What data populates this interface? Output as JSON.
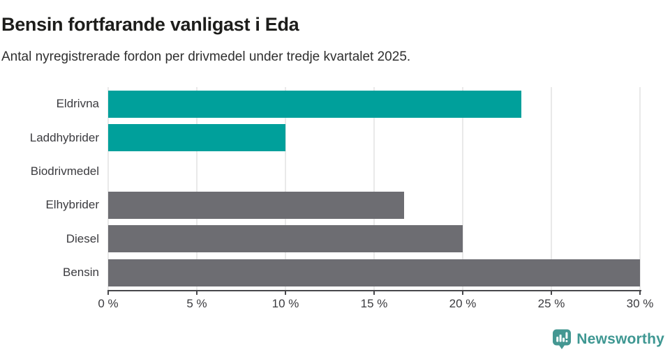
{
  "header": {
    "title": "Bensin fortfarande vanligast i Eda",
    "subtitle": "Antal nyregistrerade fordon per drivmedel under tredje kvartalet 2025."
  },
  "chart_data": {
    "type": "bar",
    "orientation": "horizontal",
    "title": "Bensin fortfarande vanligast i Eda",
    "subtitle": "Antal nyregistrerade fordon per drivmedel under tredje kvartalet 2025.",
    "categories": [
      "Eldrivna",
      "Laddhybrider",
      "Biodrivmedel",
      "Elhybrider",
      "Diesel",
      "Bensin"
    ],
    "values": [
      23.3,
      10,
      0,
      16.7,
      20,
      30
    ],
    "bar_colors": [
      "#00a09b",
      "#00a09b",
      "#00a09b",
      "#6d6d72",
      "#6d6d72",
      "#6d6d72"
    ],
    "value_unit": "%",
    "xlabel": "",
    "ylabel": "",
    "xlim": [
      0,
      30
    ],
    "x_ticks": [
      0,
      5,
      10,
      15,
      20,
      25,
      30
    ],
    "x_tick_labels": [
      "0 %",
      "5 %",
      "10 %",
      "15 %",
      "20 %",
      "25 %",
      "30 %"
    ],
    "grid": "vertical-gridlines-on",
    "legend": "none"
  },
  "branding": {
    "logo_text": "Newsworthy",
    "logo_icon": "bar-chart-speech-bubble-icon",
    "logo_color": "#3e9792",
    "logo_icon_color": "#449792"
  },
  "colors": {
    "accent_teal": "#00a09b",
    "neutral_gray": "#6d6d72",
    "gridline": "#e9e9e9",
    "axis": "#47474b",
    "tick_text": "#3b3b3f",
    "title_text": "#1d1d1b",
    "background": "#ffffff"
  }
}
